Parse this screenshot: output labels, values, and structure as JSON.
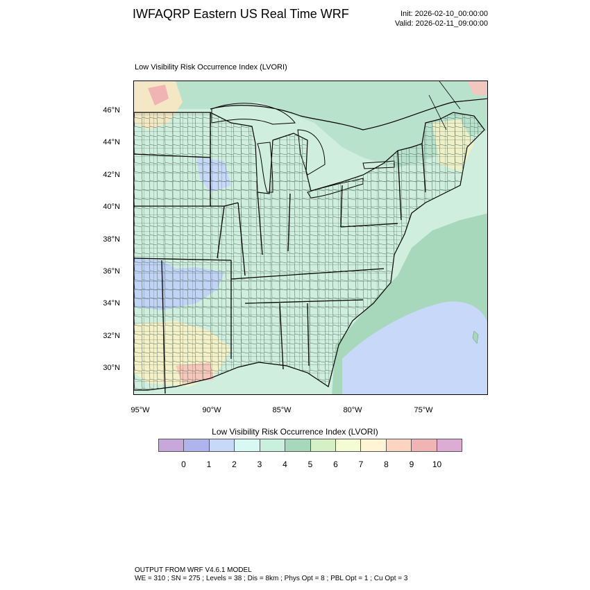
{
  "title": "IWFAQRP Eastern US Real Time WRF",
  "init_time": "Init: 2026-02-10_00:00:00",
  "valid_time": "Valid: 2026-02-11_09:00:00",
  "map_subtitle": "Low Visibility Risk Occurrence Index   (LVORI)",
  "lat_labels": [
    "46°N",
    "44°N",
    "42°N",
    "40°N",
    "38°N",
    "36°N",
    "34°N",
    "32°N",
    "30°N"
  ],
  "lon_labels": [
    "95°W",
    "90°W",
    "85°W",
    "80°W",
    "75°W"
  ],
  "colorbar": {
    "title": "Low Visibility Risk Occurrence Index  (LVORI)",
    "ticks": [
      "0",
      "1",
      "2",
      "3",
      "4",
      "5",
      "6",
      "7",
      "8",
      "9",
      "10"
    ],
    "colors": [
      "#c8a8dc",
      "#b0b4ec",
      "#c8d8f8",
      "#d8f8f4",
      "#c8f0dc",
      "#a8d8bc",
      "#d4f0c4",
      "#f4fcd4",
      "#fff4d4",
      "#fcd4c0",
      "#f0b4b4",
      "#dcacd4"
    ]
  },
  "footer": {
    "line1": "OUTPUT FROM WRF V4.6.1 MODEL",
    "line2": "WE = 310 ; SN = 275 ; Levels = 38 ; Dis = 8km ; Phys Opt = 8 ; PBL Opt = 1 ; Cu Opt = 3"
  }
}
